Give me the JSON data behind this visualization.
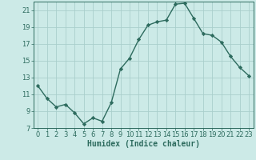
{
  "x": [
    0,
    1,
    2,
    3,
    4,
    5,
    6,
    7,
    8,
    9,
    10,
    11,
    12,
    13,
    14,
    15,
    16,
    17,
    18,
    19,
    20,
    21,
    22,
    23
  ],
  "y": [
    12.0,
    10.5,
    9.5,
    9.8,
    8.8,
    7.5,
    8.2,
    7.8,
    10.0,
    14.0,
    15.3,
    17.5,
    19.2,
    19.6,
    19.8,
    21.7,
    21.8,
    20.0,
    18.2,
    18.0,
    17.2,
    15.5,
    14.2,
    13.2
  ],
  "line_color": "#2d6b5e",
  "marker": "D",
  "marker_size": 2.2,
  "bg_color": "#cceae7",
  "grid_color": "#aacfcc",
  "xlabel": "Humidex (Indice chaleur)",
  "ylim": [
    7,
    22
  ],
  "xlim": [
    -0.5,
    23.5
  ],
  "yticks": [
    7,
    9,
    11,
    13,
    15,
    17,
    19,
    21
  ],
  "xticks": [
    0,
    1,
    2,
    3,
    4,
    5,
    6,
    7,
    8,
    9,
    10,
    11,
    12,
    13,
    14,
    15,
    16,
    17,
    18,
    19,
    20,
    21,
    22,
    23
  ],
  "xlabel_fontsize": 7.0,
  "tick_fontsize": 6.0,
  "line_width": 1.0
}
